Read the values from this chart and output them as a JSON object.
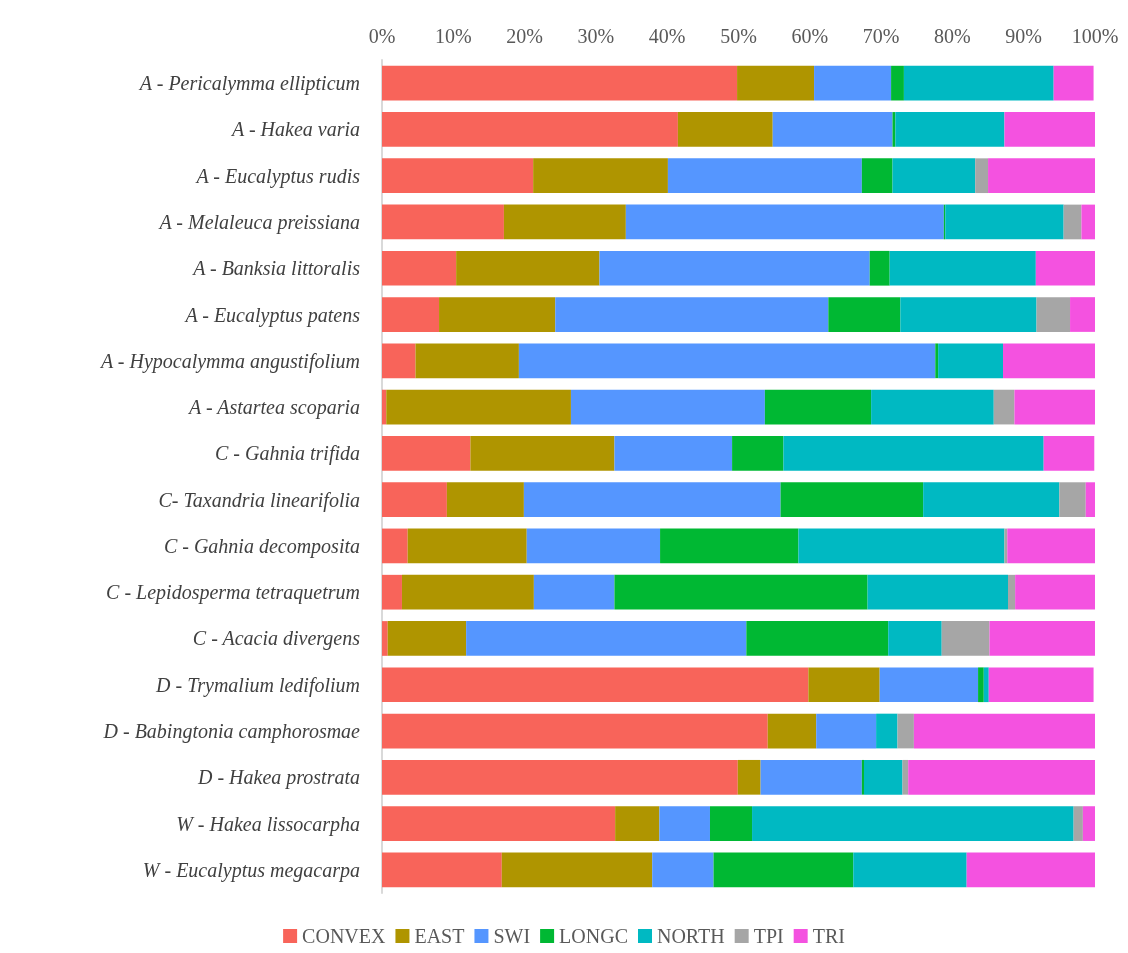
{
  "chart_data": {
    "type": "bar",
    "orientation": "horizontal",
    "stacked": true,
    "categories": [
      "A - Pericalymma ellipticum",
      "A - Hakea varia",
      "A - Eucalyptus rudis",
      "A - Melaleuca preissiana",
      "A - Banksia littoralis",
      "A - Eucalyptus patens",
      "A - Hypocalymma angustifolium",
      "A - Astartea scoparia",
      "C - Gahnia trifida",
      "C- Taxandria linearifolia",
      "C - Gahnia decomposita",
      "C - Lepidosperma tetraquetrum",
      "C - Acacia divergens",
      "D - Trymalium ledifolium",
      "D - Babingtonia camphorosmae",
      "D - Hakea prostrata",
      "W - Hakea lissocarpha",
      "W - Eucalyptus megacarpa"
    ],
    "series": [
      {
        "name": "CONVEX",
        "color": "#f8645a",
        "values": [
          49.8,
          41.5,
          21.2,
          17.1,
          10.4,
          8.0,
          4.7,
          0.6,
          12.4,
          9.1,
          3.6,
          2.8,
          0.8,
          59.8,
          54.1,
          49.9,
          32.7,
          16.8
        ]
      },
      {
        "name": "EAST",
        "color": "#af9500",
        "values": [
          10.8,
          13.3,
          18.9,
          17.1,
          20.1,
          16.3,
          14.5,
          25.9,
          20.2,
          10.8,
          16.7,
          18.5,
          11.0,
          10.0,
          6.8,
          3.2,
          6.2,
          21.1
        ]
      },
      {
        "name": "SWI",
        "color": "#5596ff",
        "values": [
          10.8,
          16.8,
          27.2,
          44.6,
          37.9,
          38.3,
          58.4,
          27.2,
          16.5,
          36.0,
          18.7,
          11.3,
          39.3,
          13.8,
          8.4,
          14.2,
          7.1,
          8.6
        ]
      },
      {
        "name": "LONGC",
        "color": "#00b833",
        "values": [
          1.8,
          0.4,
          4.3,
          0.2,
          2.8,
          10.1,
          0.4,
          14.9,
          7.2,
          20.0,
          19.4,
          35.5,
          19.9,
          0.8,
          0,
          0.3,
          5.9,
          19.6
        ]
      },
      {
        "name": "NORTH",
        "color": "#00b9c2",
        "values": [
          21.0,
          15.3,
          11.6,
          16.6,
          20.5,
          19.1,
          9.1,
          17.2,
          36.5,
          19.1,
          28.9,
          19.7,
          7.5,
          0.7,
          3.0,
          5.4,
          45.1,
          15.9
        ]
      },
      {
        "name": "TPI",
        "color": "#a6a6a6",
        "values": [
          null,
          0,
          1.8,
          2.5,
          0,
          4.7,
          0,
          2.9,
          null,
          3.7,
          0.4,
          1.0,
          6.7,
          null,
          2.3,
          0.8,
          1.3,
          0
        ]
      },
      {
        "name": "TRI",
        "color": "#f452e0",
        "values": [
          5.6,
          12.7,
          15.0,
          1.9,
          8.3,
          3.5,
          12.9,
          11.3,
          7.1,
          1.3,
          12.3,
          11.2,
          14.8,
          14.7,
          25.4,
          26.2,
          1.7,
          18.0
        ]
      }
    ],
    "xlim": [
      0,
      100
    ],
    "xticks": [
      {
        "value": 0,
        "label": "0%"
      },
      {
        "value": 10,
        "label": "10%"
      },
      {
        "value": 20,
        "label": "20%"
      },
      {
        "value": 30,
        "label": "30%"
      },
      {
        "value": 40,
        "label": "40%"
      },
      {
        "value": 50,
        "label": "50%"
      },
      {
        "value": 60,
        "label": "60%"
      },
      {
        "value": 70,
        "label": "70%"
      },
      {
        "value": 80,
        "label": "80%"
      },
      {
        "value": 90,
        "label": "90%"
      },
      {
        "value": 100,
        "label": "100%"
      }
    ],
    "legend": "bottom"
  }
}
